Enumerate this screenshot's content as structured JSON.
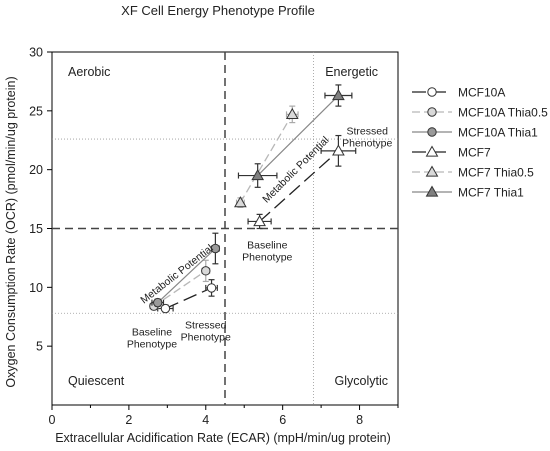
{
  "chart_data": {
    "type": "scatter",
    "title": "XF Cell Energy Phenotype Profile",
    "xlabel": "Extracellular Acidification Rate (ECAR) (mpH/min/ug protein)",
    "ylabel": "Oxygen Consumption Rate (OCR) (pmol/min/ug protein)",
    "xlim": [
      0,
      9
    ],
    "ylim": [
      0,
      30
    ],
    "xticks": [
      0,
      2,
      4,
      6,
      8
    ],
    "yticks": [
      5,
      10,
      15,
      20,
      25,
      30
    ],
    "grid": "dotted reference lines at x=6.8 and y=7.8, y=22.6",
    "quadrant_lines": {
      "x": 4.5,
      "y": 15
    },
    "quadrant_labels": {
      "top_left": "Aerobic",
      "top_right": "Energetic",
      "bottom_left": "Quiescent",
      "bottom_right": "Glycolytic"
    },
    "legend_position": "right",
    "series": [
      {
        "name": "MCF10A",
        "points": [
          {
            "x": 2.95,
            "y": 8.2,
            "xerr": 0.2,
            "yerr": 0.3
          },
          {
            "x": 4.15,
            "y": 9.95,
            "xerr": 0.15,
            "yerr": 0.7
          }
        ],
        "marker": "circle",
        "fill": "#ffffff",
        "line": "dashed-dark"
      },
      {
        "name": "MCF10A Thia0.5",
        "points": [
          {
            "x": 2.65,
            "y": 8.4,
            "xerr": 0.1,
            "yerr": 0.3
          },
          {
            "x": 4.0,
            "y": 11.4,
            "xerr": 0.1,
            "yerr": 0.9
          }
        ],
        "marker": "circle",
        "fill": "#d9d9d9",
        "line": "dashed-light"
      },
      {
        "name": "MCF10A Thia1",
        "points": [
          {
            "x": 2.75,
            "y": 8.7,
            "xerr": 0.15,
            "yerr": 0.3
          },
          {
            "x": 4.25,
            "y": 13.3,
            "xerr": 0.1,
            "yerr": 1.3
          }
        ],
        "marker": "circle",
        "fill": "#9a9a9a",
        "line": "solid-gray"
      },
      {
        "name": "MCF7",
        "points": [
          {
            "x": 5.4,
            "y": 15.6,
            "xerr": 0.3,
            "yerr": 0.6
          },
          {
            "x": 7.45,
            "y": 21.6,
            "xerr": 0.45,
            "yerr": 1.3
          }
        ],
        "marker": "triangle",
        "fill": "#ffffff",
        "line": "dashed-dark"
      },
      {
        "name": "MCF7 Thia0.5",
        "points": [
          {
            "x": 4.9,
            "y": 17.2,
            "xerr": 0.1,
            "yerr": 0.4
          },
          {
            "x": 6.25,
            "y": 24.7,
            "xerr": 0.15,
            "yerr": 0.7
          }
        ],
        "marker": "triangle",
        "fill": "#d9d9d9",
        "line": "dashed-light"
      },
      {
        "name": "MCF7 Thia1",
        "points": [
          {
            "x": 5.35,
            "y": 19.5,
            "xerr": 0.5,
            "yerr": 1.0
          },
          {
            "x": 7.45,
            "y": 26.3,
            "xerr": 0.35,
            "yerr": 0.9
          }
        ],
        "marker": "triangle",
        "fill": "#808080",
        "line": "solid-gray"
      }
    ],
    "annotations": [
      {
        "id": "bp1",
        "text": [
          "Baseline",
          "Phenotype"
        ],
        "x": 2.6,
        "y": 5.9
      },
      {
        "id": "sp1",
        "text": [
          "Stressed",
          "Phenotype"
        ],
        "x": 4.0,
        "y": 6.5
      },
      {
        "id": "mp1",
        "text": [
          "Metabolic Potential"
        ],
        "x": 3.3,
        "y": 10.9,
        "rotate": -38
      },
      {
        "id": "bp2",
        "text": [
          "Baseline",
          "Phenotype"
        ],
        "x": 5.6,
        "y": 13.3
      },
      {
        "id": "sp2",
        "text": [
          "Stressed",
          "Phenotype"
        ],
        "x": 8.2,
        "y": 23.0
      },
      {
        "id": "mp2",
        "text": [
          "Metabolic Potential"
        ],
        "x": 6.4,
        "y": 19.8,
        "rotate": -45
      }
    ]
  }
}
